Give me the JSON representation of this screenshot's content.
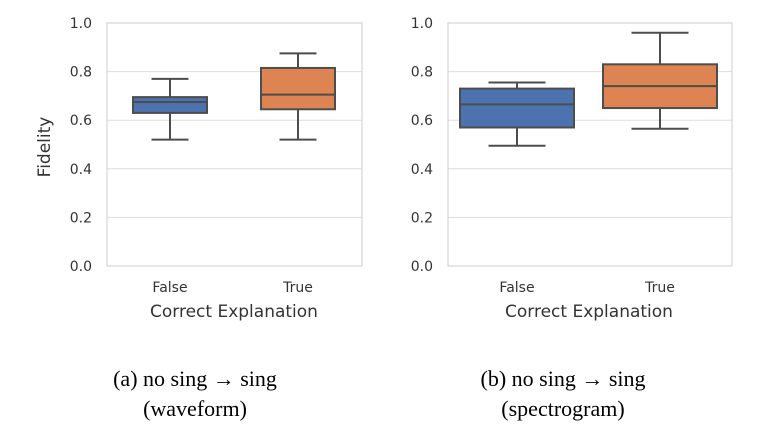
{
  "chart_data": [
    {
      "type": "box",
      "ylabel": "Fidelity",
      "xlabel": "Correct Explanation",
      "ylim": [
        0.0,
        1.0
      ],
      "yticks": [
        "0.0",
        "0.2",
        "0.4",
        "0.6",
        "0.8",
        "1.0"
      ],
      "grid": true,
      "caption_line1": "(a) no sing → sing",
      "caption_line2": "(waveform)",
      "boxes": [
        {
          "category": "False",
          "color": "#4c72b0",
          "whisker_low": 0.52,
          "q1": 0.63,
          "median": 0.675,
          "q3": 0.695,
          "whisker_high": 0.77
        },
        {
          "category": "True",
          "color": "#dd8452",
          "whisker_low": 0.52,
          "q1": 0.645,
          "median": 0.705,
          "q3": 0.815,
          "whisker_high": 0.875
        }
      ]
    },
    {
      "type": "box",
      "ylabel": "",
      "xlabel": "Correct Explanation",
      "ylim": [
        0.0,
        1.0
      ],
      "yticks": [
        "0.0",
        "0.2",
        "0.4",
        "0.6",
        "0.8",
        "1.0"
      ],
      "grid": true,
      "caption_line1": "(b) no sing → sing",
      "caption_line2": "(spectrogram)",
      "boxes": [
        {
          "category": "False",
          "color": "#4c72b0",
          "whisker_low": 0.495,
          "q1": 0.57,
          "median": 0.665,
          "q3": 0.73,
          "whisker_high": 0.755
        },
        {
          "category": "True",
          "color": "#dd8452",
          "whisker_low": 0.565,
          "q1": 0.65,
          "median": 0.74,
          "q3": 0.83,
          "whisker_high": 0.96
        }
      ]
    }
  ]
}
